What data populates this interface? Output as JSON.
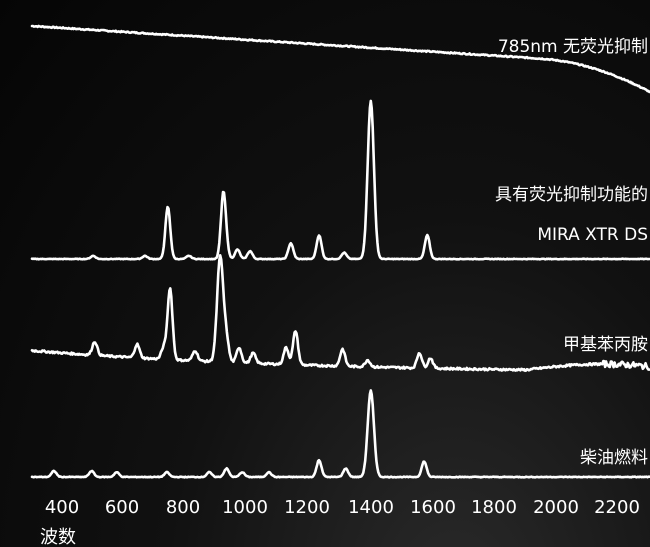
{
  "chart_data": {
    "type": "line",
    "title": "",
    "xlabel": "波数",
    "ylabel": "",
    "xlim": [
      330,
      2300
    ],
    "x_ticks": [
      "400",
      "600",
      "800",
      "1000",
      "1200",
      "1400",
      "1600",
      "1800",
      "2000",
      "2200"
    ],
    "grid": false,
    "series": [
      {
        "name": "785nm 无荧光抑制",
        "label_lines": [
          "785nm 无荧光抑制"
        ],
        "style": "fluorescence_decay",
        "start_level": 0.95,
        "end_level": 0.4,
        "peaks": [],
        "noise": 0.01
      },
      {
        "name": "具有荧光抑制功能的 MIRA XTR DS",
        "label_lines": [
          "具有荧光抑制功能的",
          "MIRA XTR DS"
        ],
        "style": "flat_baseline",
        "peaks": [
          {
            "x": 525,
            "h": 0.02
          },
          {
            "x": 690,
            "h": 0.02
          },
          {
            "x": 763,
            "h": 0.33
          },
          {
            "x": 830,
            "h": 0.02
          },
          {
            "x": 950,
            "h": 0.04
          },
          {
            "x": 940,
            "h": 0.41
          },
          {
            "x": 985,
            "h": 0.06
          },
          {
            "x": 1025,
            "h": 0.05
          },
          {
            "x": 1155,
            "h": 0.1
          },
          {
            "x": 1245,
            "h": 0.15
          },
          {
            "x": 1325,
            "h": 0.04
          },
          {
            "x": 1410,
            "h": 1.0
          },
          {
            "x": 1590,
            "h": 0.15
          }
        ],
        "noise": 0.004
      },
      {
        "name": "甲基苯丙胺",
        "label_lines": [
          "甲基苯丙胺"
        ],
        "style": "sloped_baseline",
        "start_level": 0.55,
        "end_level": 0.03,
        "peaks": [
          {
            "x": 530,
            "h": 0.08
          },
          {
            "x": 665,
            "h": 0.08
          },
          {
            "x": 750,
            "h": 0.07
          },
          {
            "x": 770,
            "h": 0.42
          },
          {
            "x": 850,
            "h": 0.06
          },
          {
            "x": 930,
            "h": 0.62
          },
          {
            "x": 950,
            "h": 0.12
          },
          {
            "x": 990,
            "h": 0.09
          },
          {
            "x": 1035,
            "h": 0.06
          },
          {
            "x": 1140,
            "h": 0.1
          },
          {
            "x": 1170,
            "h": 0.2
          },
          {
            "x": 1320,
            "h": 0.1
          },
          {
            "x": 1400,
            "h": 0.04
          },
          {
            "x": 1565,
            "h": 0.09
          },
          {
            "x": 1600,
            "h": 0.06
          }
        ],
        "noise": 0.012
      },
      {
        "name": "柴油燃料",
        "label_lines": [
          "柴油燃料"
        ],
        "style": "flat_baseline",
        "peaks": [
          {
            "x": 400,
            "h": 0.05
          },
          {
            "x": 520,
            "h": 0.05
          },
          {
            "x": 600,
            "h": 0.04
          },
          {
            "x": 760,
            "h": 0.04
          },
          {
            "x": 895,
            "h": 0.04
          },
          {
            "x": 950,
            "h": 0.07
          },
          {
            "x": 1000,
            "h": 0.04
          },
          {
            "x": 1085,
            "h": 0.04
          },
          {
            "x": 1245,
            "h": 0.14
          },
          {
            "x": 1330,
            "h": 0.07
          },
          {
            "x": 1410,
            "h": 0.72
          },
          {
            "x": 1580,
            "h": 0.13
          }
        ],
        "noise": 0.006
      }
    ]
  }
}
